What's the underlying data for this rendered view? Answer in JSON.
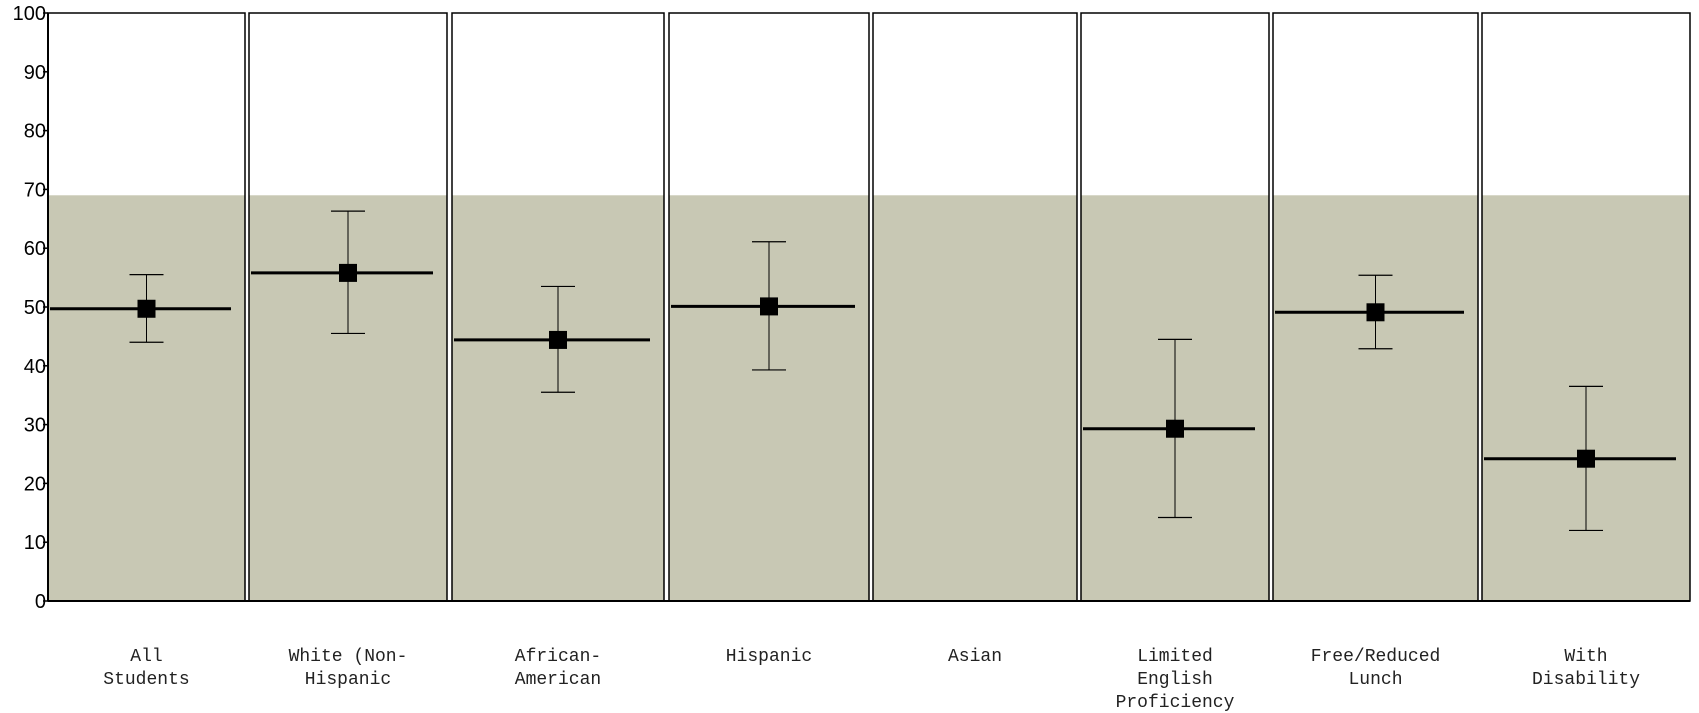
{
  "chart_data": {
    "type": "scatter",
    "categories": [
      [
        "All",
        "Students"
      ],
      [
        "White (Non-",
        "Hispanic"
      ],
      [
        "African-",
        "American"
      ],
      [
        "Hispanic"
      ],
      [
        "Asian"
      ],
      [
        "Limited",
        "English",
        "Proficiency"
      ],
      [
        "Free/Reduced",
        "Lunch"
      ],
      [
        "With",
        "Disability"
      ]
    ],
    "band_upper": 69,
    "points": [
      {
        "value": 49.7,
        "low": 44.0,
        "high": 55.5
      },
      {
        "value": 55.8,
        "low": 45.5,
        "high": 66.3
      },
      {
        "value": 44.4,
        "low": 35.5,
        "high": 53.5
      },
      {
        "value": 50.1,
        "low": 39.3,
        "high": 61.1
      },
      null,
      {
        "value": 29.3,
        "low": 14.2,
        "high": 44.5
      },
      {
        "value": 49.1,
        "low": 42.9,
        "high": 55.4
      },
      {
        "value": 24.2,
        "low": 12.0,
        "high": 36.5
      }
    ],
    "ylim": [
      0,
      100
    ],
    "yticks": [
      "0",
      "10",
      "20",
      "30",
      "40",
      "50",
      "60",
      "70",
      "80",
      "90",
      "100"
    ],
    "colors": {
      "band": "#c8c8b4",
      "marker": "#000000",
      "axis": "#000000"
    },
    "grid": false,
    "title": "",
    "xlabel": "",
    "ylabel": ""
  }
}
